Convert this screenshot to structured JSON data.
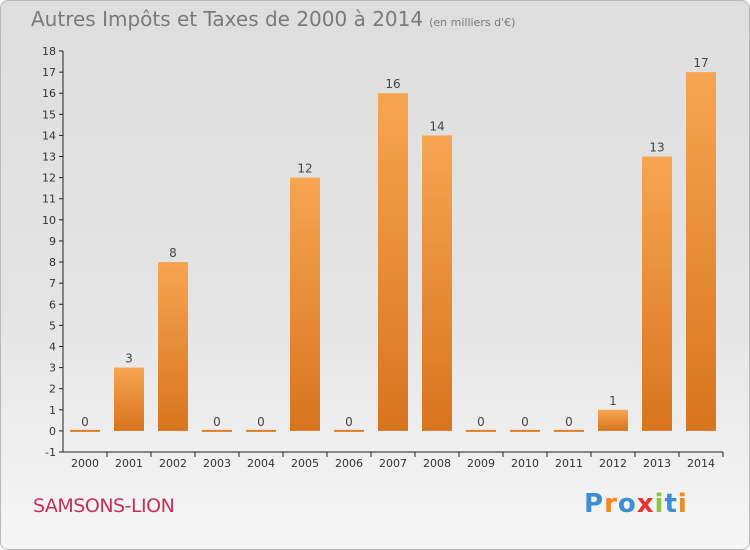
{
  "header": {
    "title": "Autres Impôts et Taxes de 2000 à 2014",
    "unit": "(en milliers d'€)"
  },
  "commune": "SAMSONS-LION",
  "logo": {
    "text": "Proxiti",
    "letters": [
      "P",
      "r",
      "o",
      "x",
      "i",
      "t",
      "i"
    ],
    "colors": [
      "#3c8fd4",
      "#f08a1e",
      "#3c8fd4",
      "#e8352b",
      "#8cc63f",
      "#3c8fd4",
      "#f08a1e"
    ]
  },
  "chart_data": {
    "type": "bar",
    "categories": [
      "2000",
      "2001",
      "2002",
      "2003",
      "2004",
      "2005",
      "2006",
      "2007",
      "2008",
      "2009",
      "2010",
      "2011",
      "2012",
      "2013",
      "2014"
    ],
    "values": [
      0,
      3,
      8,
      0,
      0,
      12,
      0,
      16,
      14,
      0,
      0,
      0,
      1,
      13,
      17
    ],
    "ylim": [
      -1,
      18
    ],
    "yticks": [
      -1,
      0,
      1,
      2,
      3,
      4,
      5,
      6,
      7,
      8,
      9,
      10,
      11,
      12,
      13,
      14,
      15,
      16,
      17,
      18
    ],
    "grid": false,
    "bar_color": "#f28a2e"
  }
}
